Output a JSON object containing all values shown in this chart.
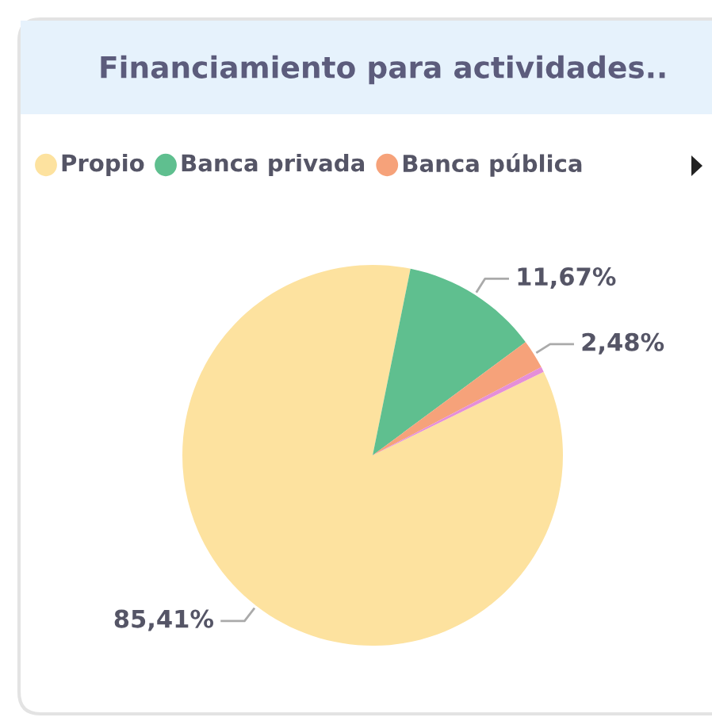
{
  "chart_data": {
    "type": "pie",
    "title": "Financiamiento para actividades..",
    "categories": [
      "Propio",
      "Banca privada",
      "Banca pública",
      null
    ],
    "values": [
      85.41,
      11.67,
      2.48,
      0.44
    ],
    "colors": [
      "#fde29f",
      "#5fbf8f",
      "#f6a27a",
      "#e58fd8"
    ],
    "value_labels": [
      "85,41%",
      "11,67%",
      "2,48%",
      null
    ],
    "legend": "top left"
  }
}
